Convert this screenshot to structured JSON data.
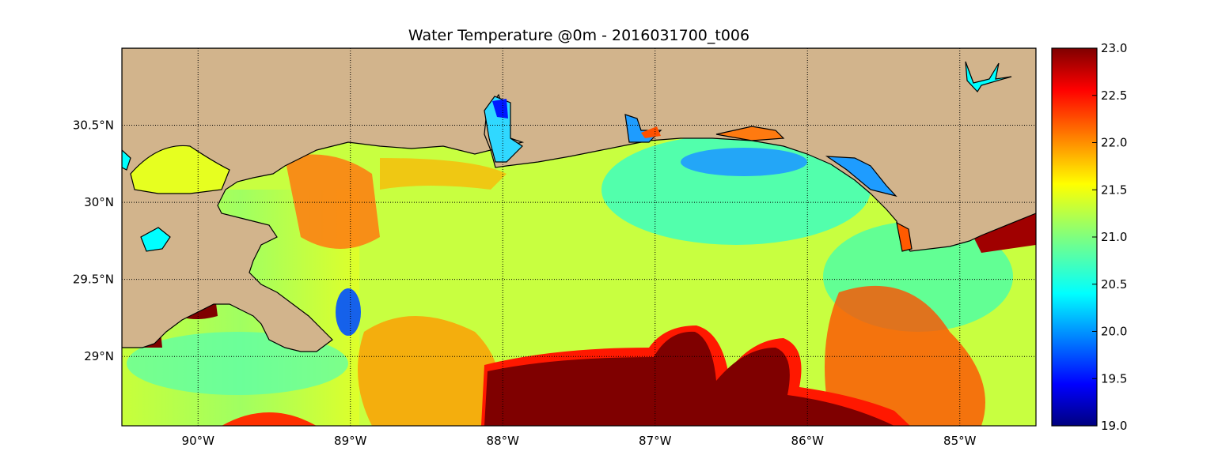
{
  "title": "Water Temperature @0m - 2016031700_t006",
  "map": {
    "lon_range": [
      -90.5,
      -84.5
    ],
    "lat_range": [
      28.55,
      31.0
    ],
    "grid": true,
    "land_color": "#d2b48c",
    "water_colormap": "jet",
    "lon_ticks": [
      {
        "value": -90,
        "label": "90°W"
      },
      {
        "value": -89,
        "label": "89°W"
      },
      {
        "value": -88,
        "label": "88°W"
      },
      {
        "value": -87,
        "label": "87°W"
      },
      {
        "value": -86,
        "label": "86°W"
      },
      {
        "value": -85,
        "label": "85°W"
      }
    ],
    "lat_ticks": [
      {
        "value": 30.5,
        "label": "30.5°N"
      },
      {
        "value": 30.0,
        "label": "30°N"
      },
      {
        "value": 29.5,
        "label": "29.5°N"
      },
      {
        "value": 29.0,
        "label": "29°N"
      }
    ]
  },
  "colorbar": {
    "min": 19.0,
    "max": 23.0,
    "colors": [
      "#00007f",
      "#0000ff",
      "#007fff",
      "#00ffff",
      "#7fff7f",
      "#ffff00",
      "#ff7f00",
      "#ff0000",
      "#7f0000"
    ],
    "ticks": [
      {
        "value": 19.0,
        "label": "19.0"
      },
      {
        "value": 19.5,
        "label": "19.5"
      },
      {
        "value": 20.0,
        "label": "20.0"
      },
      {
        "value": 20.5,
        "label": "20.5"
      },
      {
        "value": 21.0,
        "label": "21.0"
      },
      {
        "value": 21.5,
        "label": "21.5"
      },
      {
        "value": 22.0,
        "label": "22.0"
      },
      {
        "value": 22.5,
        "label": "22.5"
      },
      {
        "value": 23.0,
        "label": "23.0"
      }
    ]
  }
}
